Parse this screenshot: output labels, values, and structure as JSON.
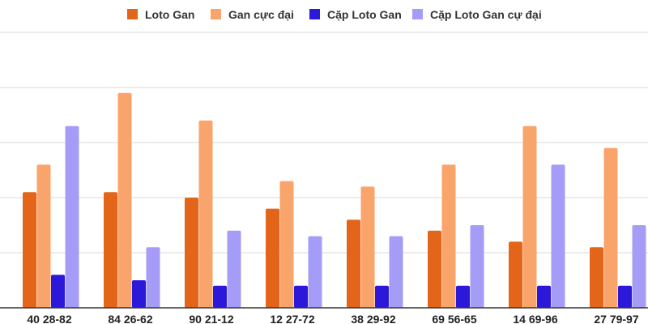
{
  "chart_data": {
    "type": "bar",
    "title": "",
    "xlabel": "",
    "ylabel": "",
    "ylim": [
      0,
      50
    ],
    "grid": true,
    "legend_position": "top",
    "categories": [
      "40 28-82",
      "84 26-62",
      "90 21-12",
      "12 27-72",
      "38 29-92",
      "69 56-65",
      "14 69-96",
      "27 79-97"
    ],
    "series": [
      {
        "name": "Loto Gan",
        "color": "#e2651a",
        "values": [
          21,
          21,
          20,
          18,
          16,
          14,
          12,
          11
        ]
      },
      {
        "name": "Gan cực đại",
        "color": "#f9a46b",
        "values": [
          26,
          39,
          34,
          23,
          22,
          26,
          33,
          29
        ]
      },
      {
        "name": "Cặp Loto Gan",
        "color": "#2b18d8",
        "values": [
          6,
          5,
          4,
          4,
          4,
          4,
          4,
          4
        ]
      },
      {
        "name": "Cặp Loto Gan cự đại",
        "color": "#a49cf7",
        "values": [
          33,
          11,
          14,
          13,
          13,
          15,
          26,
          15
        ]
      }
    ]
  }
}
